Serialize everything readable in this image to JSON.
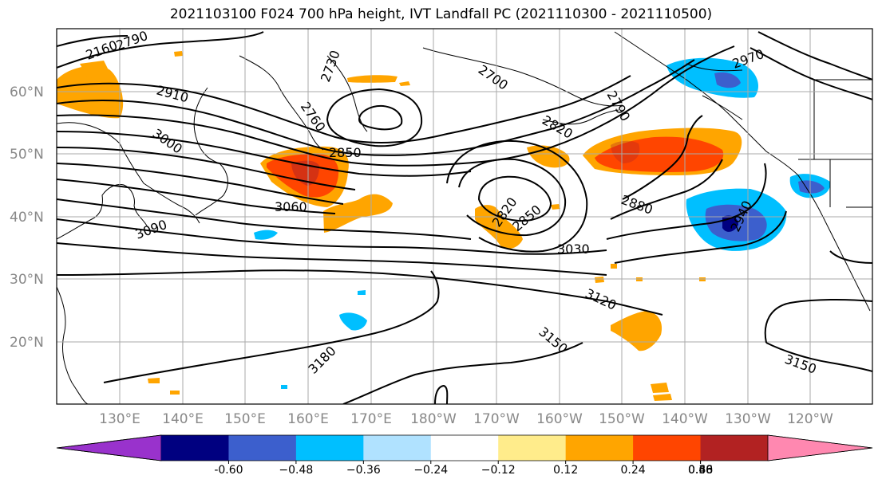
{
  "title": "2021103100 F024 700 hPa height, IVT Landfall PC (2021110300 - 2021110500)",
  "map": {
    "lat_labels": [
      "60°N",
      "50°N",
      "40°N",
      "30°N",
      "20°N"
    ],
    "lon_labels": [
      "130°E",
      "140°E",
      "150°E",
      "160°E",
      "170°E",
      "180°W",
      "170°W",
      "160°W",
      "150°W",
      "140°W",
      "130°W",
      "120°W"
    ],
    "contour_labels": [
      "2160",
      "2790",
      "2910",
      "3000",
      "2730",
      "2760",
      "2700",
      "2790",
      "2820",
      "2970",
      "2850",
      "3060",
      "3090",
      "2820",
      "2850",
      "2880",
      "2940",
      "3030",
      "3120",
      "3150",
      "3180",
      "3150"
    ],
    "colors": {
      "land_outline": "#000000",
      "contour": "#000000",
      "grid": "#aaaaaa",
      "axis_tick_labels": "#888888"
    }
  },
  "colorbar": {
    "levels": [
      "-0.60",
      "−0.48",
      "−0.36",
      "−0.24",
      "−0.12",
      "0.12",
      "0.24",
      "0.36",
      "0.48",
      "0.60"
    ],
    "colors": [
      "#9932cc",
      "#000080",
      "#3c5fcd",
      "#00bfff",
      "#b0e2ff",
      "#ffffff",
      "#ffec8b",
      "#ffa500",
      "#ff4500",
      "#b22222",
      "#ff88b0"
    ]
  }
}
